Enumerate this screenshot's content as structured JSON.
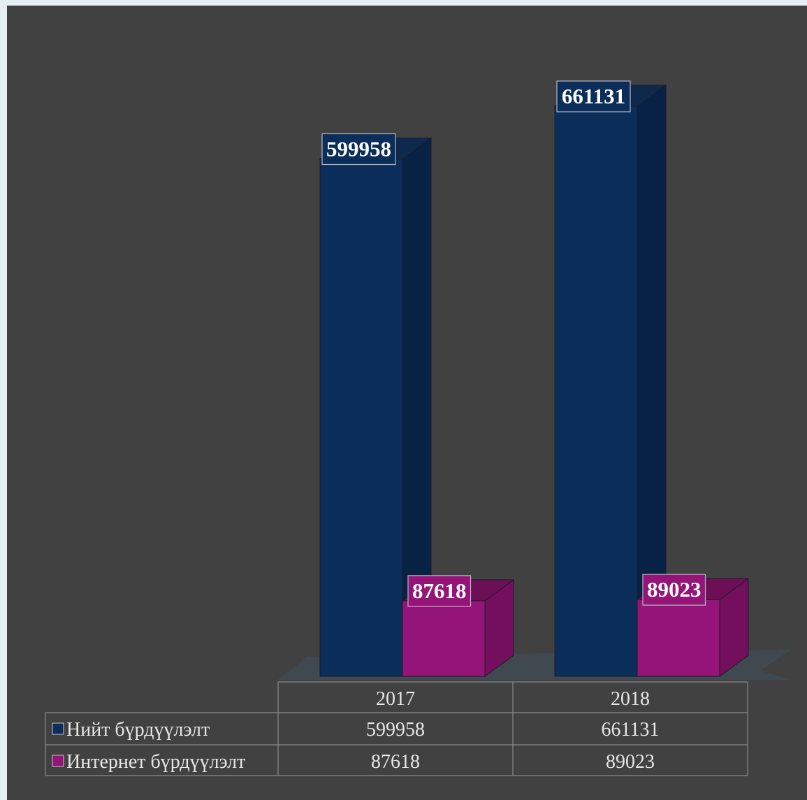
{
  "chart_data": {
    "type": "bar",
    "categories": [
      "2017",
      "2018"
    ],
    "series": [
      {
        "name": "Нийт бүрдүүлэлт",
        "values": [
          599958,
          661131
        ],
        "color": "#0b2d5a",
        "side_color": "#082246",
        "top_color": "#0d2a4c"
      },
      {
        "name": "Интернет бүрдүүлэлт",
        "values": [
          87618,
          89023
        ],
        "color": "#951478",
        "side_color": "#730f5c",
        "top_color": "#6c0f57"
      }
    ],
    "ylim": [
      0,
      661131
    ],
    "data_labels": true,
    "legend": "table",
    "grid": false
  }
}
